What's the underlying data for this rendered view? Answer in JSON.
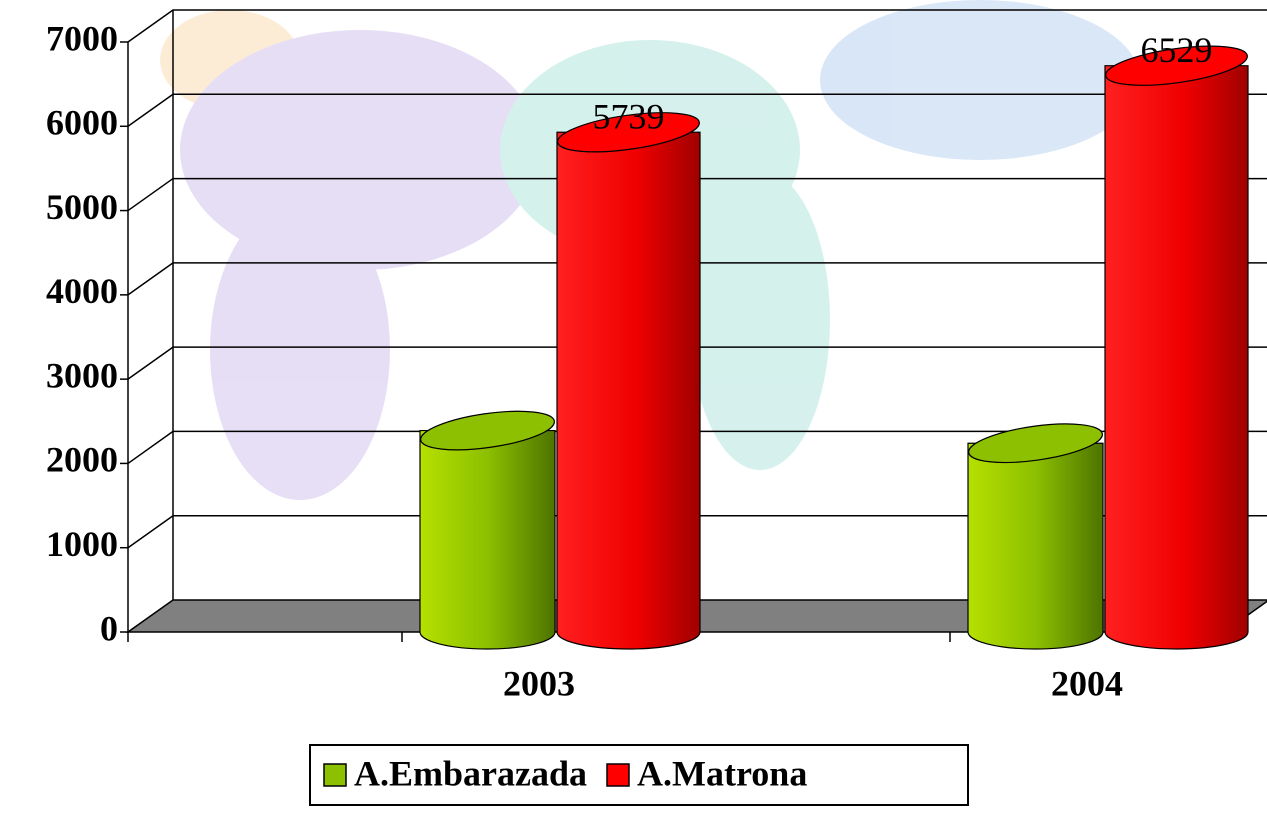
{
  "chart_data": {
    "type": "bar3d",
    "categories": [
      "2003",
      "2004"
    ],
    "series": [
      {
        "name": "A.Embarazada",
        "color": "#8cc000",
        "values": [
          2200,
          2050
        ]
      },
      {
        "name": "A.Matrona",
        "color": "#ff0000",
        "values": [
          5739,
          6529
        ]
      }
    ],
    "ylim": [
      0,
      7000
    ],
    "yticks": [
      0,
      1000,
      2000,
      3000,
      4000,
      5000,
      6000,
      7000
    ],
    "grid": true,
    "legend": "bottom"
  }
}
